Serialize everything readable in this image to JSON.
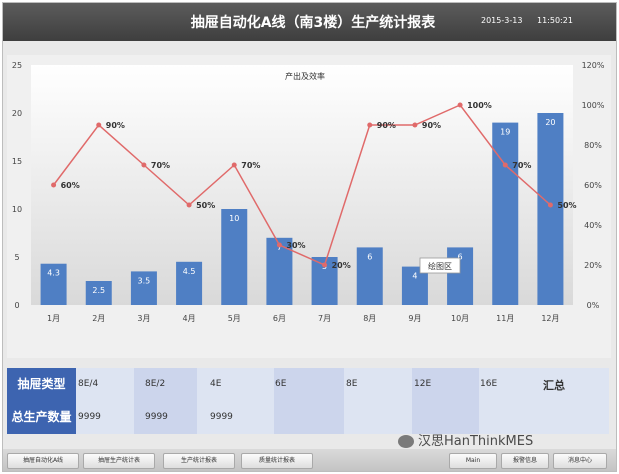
{
  "header": {
    "title": "抽屉自动化A线（南3楼）生产统计报表",
    "date": "2015-3-13",
    "time": "11:50:21"
  },
  "chart_data": {
    "type": "bar+line",
    "title": "产出及效率",
    "categories": [
      "1月",
      "2月",
      "3月",
      "4月",
      "5月",
      "6月",
      "7月",
      "8月",
      "9月",
      "10月",
      "11月",
      "12月"
    ],
    "series": [
      {
        "values": [
          4.3,
          2.5,
          3.5,
          4.5,
          10,
          7,
          5,
          6,
          4,
          6,
          19,
          20
        ],
        "axis": "left"
      },
      {
        "values": [
          60,
          90,
          70,
          50,
          70,
          30,
          20,
          90,
          90,
          100,
          70,
          50
        ],
        "axis": "right"
      }
    ],
    "left_axis": {
      "min": 0,
      "max": 25,
      "ticks": [
        0,
        5,
        10,
        15,
        20,
        25
      ]
    },
    "right_axis": {
      "min": 0,
      "max": 120,
      "ticks": [
        "0%",
        "20%",
        "40%",
        "60%",
        "80%",
        "100%",
        "120%"
      ]
    },
    "colors": {
      "bar": "#4f7fc4",
      "line": "#e06a6a"
    },
    "tooltip": "绘图区"
  },
  "table": {
    "row1_head": "抽屉类型",
    "row2_head": "总生产数量",
    "types": [
      "8E/4",
      "8E/2",
      "4E",
      "6E",
      "8E",
      "12E",
      "16E",
      "汇总"
    ],
    "quantities": [
      "9999",
      "9999",
      "9999"
    ]
  },
  "footer": {
    "buttons": [
      "抽屉自动化A线",
      "抽屉生产统计表",
      "生产统计报表",
      "质量统计报表",
      "Main",
      "报警信息",
      "消息中心"
    ]
  },
  "watermark": "汉思HanThinkMES"
}
